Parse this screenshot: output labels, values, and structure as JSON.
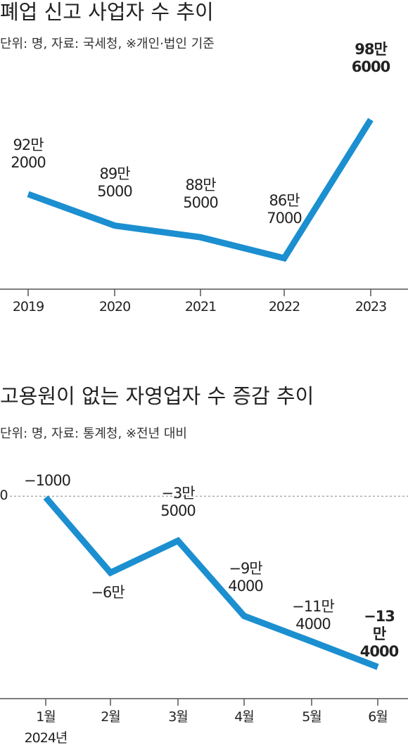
{
  "chart_data": [
    {
      "type": "line",
      "title": "폐업 신고 사업자 수 추이",
      "subtitle": "단위: 명, 자료: 국세청, ※개인·법인 기준",
      "categories": [
        "2019",
        "2020",
        "2021",
        "2022",
        "2023"
      ],
      "series": [
        {
          "color": "#1b8fd0",
          "values": [
            922000,
            895000,
            885000,
            867000,
            986000
          ],
          "value_labels": [
            "92만\n2000",
            "89만\n5000",
            "88만\n5000",
            "86만\n7000",
            "98만\n6000"
          ]
        }
      ],
      "bold_last": true
    },
    {
      "type": "line",
      "title": "고용원이 없는 자영업자 수 증감 추이",
      "subtitle": "단위: 명, 자료: 통계청, ※전년 대비",
      "categories": [
        "1월",
        "2월",
        "3월",
        "4월",
        "5월",
        "6월"
      ],
      "x_note": "2024년",
      "series": [
        {
          "color": "#1b8fd0",
          "values": [
            -1000,
            -60000,
            -35000,
            -94000,
            -114000,
            -134000
          ],
          "value_labels": [
            "−1000",
            "−6만",
            "−3만\n5000",
            "−9만\n4000",
            "−11만\n4000",
            "−13만\n4000"
          ]
        }
      ],
      "yticks": [
        0
      ],
      "bold_last": true
    }
  ]
}
